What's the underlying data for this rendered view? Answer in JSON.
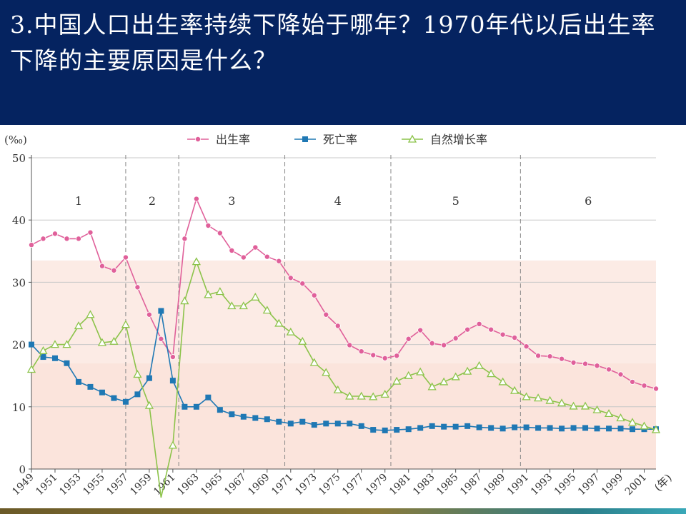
{
  "question": "3.中国人口出生率持续下降始于哪年？1970年代以后出生率下降的主要原因是什么？",
  "colors": {
    "header_bg": "#052360",
    "birth": "#e0609a",
    "death": "#1f78b4",
    "natural": "#8cc34a",
    "band": "#fbe3da"
  },
  "chart_data": {
    "type": "line",
    "title": "",
    "ylabel": "(‰)",
    "xlabel": "(年)",
    "ylim": [
      0,
      50
    ],
    "xlim": [
      1949,
      2002
    ],
    "y_ticks": [
      "0",
      "10",
      "20",
      "30",
      "40",
      "50"
    ],
    "x_ticks": [
      "1949",
      "1951",
      "1953",
      "1955",
      "1957",
      "1959",
      "1961",
      "1963",
      "1965",
      "1967",
      "1969",
      "1971",
      "1973",
      "1975",
      "1977",
      "1979",
      "1981",
      "1983",
      "1985",
      "1987",
      "1989",
      "1991",
      "1993",
      "1995",
      "1997",
      "1999",
      "2001"
    ],
    "legend_position": "top",
    "period_dividers": [
      1957,
      1961.5,
      1970.5,
      1979.5,
      1990.5
    ],
    "periods": [
      {
        "label": "1",
        "start": 1949,
        "end": 1957
      },
      {
        "label": "2",
        "start": 1957,
        "end": 1961.5
      },
      {
        "label": "3",
        "start": 1961.5,
        "end": 1970.5
      },
      {
        "label": "4",
        "start": 1970.5,
        "end": 1979.5
      },
      {
        "label": "5",
        "start": 1979.5,
        "end": 1990.5
      },
      {
        "label": "6",
        "start": 1990.5,
        "end": 2002
      }
    ],
    "bands": [
      [
        17,
        33.5
      ],
      [
        0,
        17
      ]
    ],
    "x": [
      1949,
      1950,
      1951,
      1952,
      1953,
      1954,
      1955,
      1956,
      1957,
      1958,
      1959,
      1960,
      1961,
      1962,
      1963,
      1964,
      1965,
      1966,
      1967,
      1968,
      1969,
      1970,
      1971,
      1972,
      1973,
      1974,
      1975,
      1976,
      1977,
      1978,
      1979,
      1980,
      1981,
      1982,
      1983,
      1984,
      1985,
      1986,
      1987,
      1988,
      1989,
      1990,
      1991,
      1992,
      1993,
      1994,
      1995,
      1996,
      1997,
      1998,
      1999,
      2000,
      2001,
      2002
    ],
    "series": [
      {
        "name": "出生率",
        "marker": "circle",
        "values": [
          36.0,
          37.0,
          37.8,
          37.0,
          37.0,
          38.0,
          32.6,
          31.9,
          34.0,
          29.2,
          24.8,
          20.9,
          18.0,
          37.0,
          43.4,
          39.1,
          37.9,
          35.1,
          34.0,
          35.6,
          34.1,
          33.4,
          30.7,
          29.8,
          27.9,
          24.8,
          23.0,
          19.9,
          18.9,
          18.3,
          17.8,
          18.2,
          20.9,
          22.3,
          20.2,
          19.9,
          21.0,
          22.4,
          23.3,
          22.4,
          21.6,
          21.1,
          19.7,
          18.2,
          18.1,
          17.7,
          17.1,
          16.9,
          16.6,
          16.0,
          15.2,
          14.0,
          13.4,
          12.9
        ]
      },
      {
        "name": "死亡率",
        "marker": "square",
        "values": [
          20.0,
          18.0,
          17.8,
          17.0,
          14.0,
          13.2,
          12.3,
          11.4,
          10.8,
          12.0,
          14.6,
          25.4,
          14.2,
          10.0,
          10.0,
          11.5,
          9.5,
          8.8,
          8.4,
          8.2,
          8.0,
          7.6,
          7.3,
          7.6,
          7.1,
          7.3,
          7.3,
          7.3,
          6.9,
          6.3,
          6.2,
          6.3,
          6.4,
          6.6,
          6.9,
          6.8,
          6.8,
          6.9,
          6.7,
          6.6,
          6.5,
          6.7,
          6.7,
          6.6,
          6.6,
          6.5,
          6.6,
          6.6,
          6.5,
          6.5,
          6.5,
          6.4,
          6.4,
          6.4
        ]
      },
      {
        "name": "自然增长率",
        "marker": "triangle",
        "values": [
          16.0,
          19.0,
          20.0,
          20.0,
          23.0,
          24.8,
          20.3,
          20.5,
          23.2,
          15.2,
          10.2,
          -4.6,
          3.8,
          27.0,
          33.3,
          28.0,
          28.5,
          26.2,
          26.2,
          27.6,
          25.5,
          23.4,
          22.0,
          20.5,
          17.1,
          15.5,
          12.7,
          11.7,
          11.7,
          11.6,
          12.0,
          14.1,
          15.0,
          15.6,
          13.2,
          14.0,
          14.8,
          15.7,
          16.6,
          15.3,
          14.0,
          12.6,
          11.6,
          11.4,
          11.0,
          10.6,
          10.1,
          10.1,
          9.5,
          8.9,
          8.2,
          7.5,
          6.9,
          6.3
        ]
      }
    ]
  }
}
